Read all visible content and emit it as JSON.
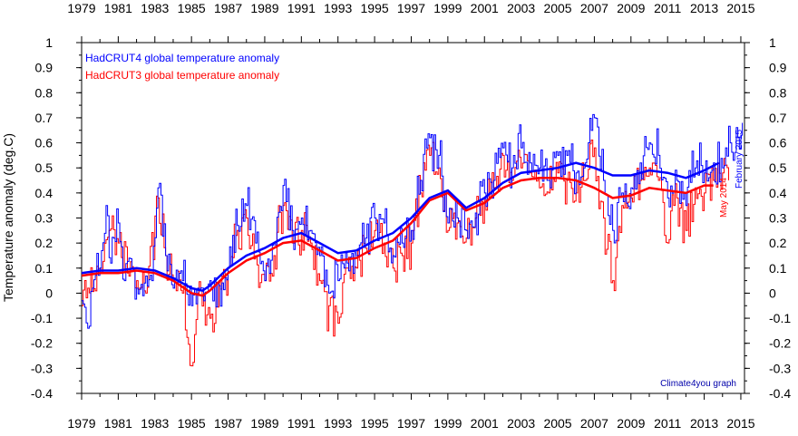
{
  "chart_data": {
    "type": "line",
    "ylabel": "Temperature anomaly (deg.C)",
    "xlim": [
      1979,
      2015.2
    ],
    "ylim": [
      -0.4,
      1.0
    ],
    "x_ticks": [
      1979,
      1981,
      1983,
      1985,
      1987,
      1989,
      1991,
      1993,
      1995,
      1997,
      1999,
      2001,
      2003,
      2005,
      2007,
      2009,
      2011,
      2013,
      2015
    ],
    "y_ticks": [
      -0.4,
      -0.3,
      -0.2,
      -0.1,
      0,
      0.1,
      0.2,
      0.3,
      0.4,
      0.5,
      0.6,
      0.7,
      0.8,
      0.9,
      1
    ],
    "x_tick_labels": [
      "1979",
      "1981",
      "1983",
      "1985",
      "1987",
      "1989",
      "1991",
      "1993",
      "1995",
      "1997",
      "1999",
      "2001",
      "2003",
      "2005",
      "2007",
      "2009",
      "2011",
      "2013",
      "2015"
    ],
    "y_tick_labels": [
      "-0.4",
      "-0.3",
      "-0.2",
      "-0.1",
      "0",
      "0.1",
      "0.2",
      "0.3",
      "0.4",
      "0.5",
      "0.6",
      "0.7",
      "0.8",
      "0.9",
      "1"
    ],
    "legend": {
      "placement": "top-left"
    },
    "grid": false,
    "series": [
      {
        "name": "HadCRUT4 global temperature anomaly",
        "color": "#0000ff",
        "end_label": "February 2015",
        "monthly_anchors": [
          [
            1979.0,
            -0.03
          ],
          [
            1979.3,
            -0.14
          ],
          [
            1979.6,
            0.02
          ],
          [
            1980.0,
            0.1
          ],
          [
            1980.3,
            0.35
          ],
          [
            1980.6,
            0.12
          ],
          [
            1981.0,
            0.28
          ],
          [
            1981.3,
            0.05
          ],
          [
            1981.6,
            0.14
          ],
          [
            1982.0,
            0.02
          ],
          [
            1982.3,
            -0.01
          ],
          [
            1982.8,
            0.05
          ],
          [
            1983.2,
            0.42
          ],
          [
            1983.6,
            0.15
          ],
          [
            1984.0,
            0.02
          ],
          [
            1984.5,
            0.05
          ],
          [
            1985.0,
            -0.05
          ],
          [
            1985.3,
            0.02
          ],
          [
            1985.6,
            0.02
          ],
          [
            1986.0,
            0.05
          ],
          [
            1986.5,
            0.03
          ],
          [
            1987.0,
            0.1
          ],
          [
            1987.5,
            0.27
          ],
          [
            1988.0,
            0.35
          ],
          [
            1988.5,
            0.2
          ],
          [
            1989.0,
            0.05
          ],
          [
            1989.5,
            0.2
          ],
          [
            1990.0,
            0.43
          ],
          [
            1990.5,
            0.25
          ],
          [
            1991.0,
            0.3
          ],
          [
            1991.5,
            0.25
          ],
          [
            1992.0,
            0.15
          ],
          [
            1992.5,
            0.0
          ],
          [
            1993.0,
            0.05
          ],
          [
            1993.5,
            0.12
          ],
          [
            1994.0,
            0.15
          ],
          [
            1994.5,
            0.22
          ],
          [
            1995.0,
            0.3
          ],
          [
            1995.5,
            0.28
          ],
          [
            1996.0,
            0.15
          ],
          [
            1996.5,
            0.2
          ],
          [
            1997.0,
            0.25
          ],
          [
            1997.5,
            0.45
          ],
          [
            1998.0,
            0.62
          ],
          [
            1998.5,
            0.55
          ],
          [
            1999.0,
            0.28
          ],
          [
            1999.5,
            0.3
          ],
          [
            2000.0,
            0.25
          ],
          [
            2000.5,
            0.32
          ],
          [
            2001.0,
            0.4
          ],
          [
            2001.5,
            0.45
          ],
          [
            2002.0,
            0.58
          ],
          [
            2002.5,
            0.5
          ],
          [
            2003.0,
            0.58
          ],
          [
            2003.5,
            0.52
          ],
          [
            2004.0,
            0.5
          ],
          [
            2004.5,
            0.45
          ],
          [
            2005.0,
            0.55
          ],
          [
            2005.5,
            0.55
          ],
          [
            2006.0,
            0.48
          ],
          [
            2006.5,
            0.52
          ],
          [
            2007.0,
            0.7
          ],
          [
            2007.5,
            0.45
          ],
          [
            2008.0,
            0.25
          ],
          [
            2008.5,
            0.4
          ],
          [
            2009.0,
            0.42
          ],
          [
            2009.5,
            0.52
          ],
          [
            2010.0,
            0.6
          ],
          [
            2010.5,
            0.55
          ],
          [
            2011.0,
            0.38
          ],
          [
            2011.5,
            0.45
          ],
          [
            2012.0,
            0.35
          ],
          [
            2012.5,
            0.5
          ],
          [
            2013.0,
            0.48
          ],
          [
            2013.5,
            0.52
          ],
          [
            2014.0,
            0.5
          ],
          [
            2014.4,
            0.6
          ],
          [
            2014.8,
            0.62
          ],
          [
            2015.1,
            0.68
          ]
        ],
        "smoothed": [
          [
            1979.0,
            0.08
          ],
          [
            1980.0,
            0.09
          ],
          [
            1981.0,
            0.09
          ],
          [
            1982.0,
            0.1
          ],
          [
            1983.0,
            0.09
          ],
          [
            1984.0,
            0.06
          ],
          [
            1985.0,
            0.02
          ],
          [
            1985.6,
            0.01
          ],
          [
            1986.0,
            0.03
          ],
          [
            1987.0,
            0.1
          ],
          [
            1988.0,
            0.15
          ],
          [
            1989.0,
            0.18
          ],
          [
            1990.0,
            0.22
          ],
          [
            1991.0,
            0.24
          ],
          [
            1992.0,
            0.2
          ],
          [
            1993.0,
            0.16
          ],
          [
            1994.0,
            0.17
          ],
          [
            1995.0,
            0.21
          ],
          [
            1996.0,
            0.24
          ],
          [
            1997.0,
            0.3
          ],
          [
            1998.0,
            0.38
          ],
          [
            1999.0,
            0.41
          ],
          [
            2000.0,
            0.34
          ],
          [
            2001.0,
            0.38
          ],
          [
            2002.0,
            0.44
          ],
          [
            2003.0,
            0.48
          ],
          [
            2004.0,
            0.49
          ],
          [
            2005.0,
            0.5
          ],
          [
            2006.0,
            0.52
          ],
          [
            2007.0,
            0.5
          ],
          [
            2008.0,
            0.47
          ],
          [
            2009.0,
            0.47
          ],
          [
            2010.0,
            0.49
          ],
          [
            2011.0,
            0.48
          ],
          [
            2012.0,
            0.46
          ],
          [
            2013.0,
            0.49
          ],
          [
            2013.8,
            0.52
          ]
        ]
      },
      {
        "name": "HadCRUT3 global temperature anomaly",
        "color": "#ff0000",
        "end_label": "May 2014",
        "monthly_anchors": [
          [
            1979.0,
            -0.05
          ],
          [
            1979.3,
            0.02
          ],
          [
            1980.0,
            0.1
          ],
          [
            1980.5,
            0.25
          ],
          [
            1981.0,
            0.2
          ],
          [
            1981.5,
            0.08
          ],
          [
            1982.0,
            0.05
          ],
          [
            1982.5,
            0.0
          ],
          [
            1983.2,
            0.38
          ],
          [
            1983.6,
            0.15
          ],
          [
            1984.0,
            0.05
          ],
          [
            1984.5,
            0.0
          ],
          [
            1985.0,
            -0.29
          ],
          [
            1985.3,
            0.0
          ],
          [
            1986.0,
            -0.1
          ],
          [
            1986.5,
            0.05
          ],
          [
            1987.0,
            0.1
          ],
          [
            1987.5,
            0.25
          ],
          [
            1988.0,
            0.3
          ],
          [
            1988.5,
            0.15
          ],
          [
            1989.0,
            0.05
          ],
          [
            1989.5,
            0.15
          ],
          [
            1990.0,
            0.35
          ],
          [
            1990.5,
            0.2
          ],
          [
            1991.0,
            0.25
          ],
          [
            1991.5,
            0.2
          ],
          [
            1992.0,
            0.05
          ],
          [
            1992.5,
            -0.05
          ],
          [
            1993.0,
            -0.12
          ],
          [
            1993.5,
            0.1
          ],
          [
            1994.0,
            0.1
          ],
          [
            1994.5,
            0.18
          ],
          [
            1995.0,
            0.25
          ],
          [
            1995.5,
            0.2
          ],
          [
            1996.0,
            0.1
          ],
          [
            1996.5,
            0.15
          ],
          [
            1997.0,
            0.2
          ],
          [
            1997.5,
            0.4
          ],
          [
            1998.0,
            0.55
          ],
          [
            1998.5,
            0.5
          ],
          [
            1999.0,
            0.25
          ],
          [
            1999.5,
            0.28
          ],
          [
            2000.0,
            0.22
          ],
          [
            2000.5,
            0.3
          ],
          [
            2001.0,
            0.38
          ],
          [
            2001.5,
            0.42
          ],
          [
            2002.0,
            0.55
          ],
          [
            2002.5,
            0.45
          ],
          [
            2003.0,
            0.5
          ],
          [
            2003.5,
            0.48
          ],
          [
            2004.0,
            0.42
          ],
          [
            2004.5,
            0.4
          ],
          [
            2005.0,
            0.48
          ],
          [
            2005.5,
            0.45
          ],
          [
            2006.0,
            0.4
          ],
          [
            2006.5,
            0.45
          ],
          [
            2007.0,
            0.58
          ],
          [
            2007.5,
            0.3
          ],
          [
            2008.0,
            0.05
          ],
          [
            2008.5,
            0.35
          ],
          [
            2009.0,
            0.38
          ],
          [
            2009.5,
            0.45
          ],
          [
            2010.0,
            0.5
          ],
          [
            2010.5,
            0.45
          ],
          [
            2011.0,
            0.2
          ],
          [
            2011.5,
            0.38
          ],
          [
            2012.0,
            0.25
          ],
          [
            2012.5,
            0.42
          ],
          [
            2013.0,
            0.4
          ],
          [
            2013.5,
            0.45
          ],
          [
            2014.0,
            0.48
          ],
          [
            2014.4,
            0.45
          ]
        ],
        "smoothed": [
          [
            1979.0,
            0.07
          ],
          [
            1980.0,
            0.08
          ],
          [
            1981.0,
            0.08
          ],
          [
            1982.0,
            0.09
          ],
          [
            1983.0,
            0.08
          ],
          [
            1984.0,
            0.05
          ],
          [
            1985.0,
            0.0
          ],
          [
            1985.6,
            -0.01
          ],
          [
            1986.0,
            0.01
          ],
          [
            1987.0,
            0.08
          ],
          [
            1988.0,
            0.13
          ],
          [
            1989.0,
            0.16
          ],
          [
            1990.0,
            0.2
          ],
          [
            1991.0,
            0.21
          ],
          [
            1992.0,
            0.17
          ],
          [
            1993.0,
            0.13
          ],
          [
            1994.0,
            0.14
          ],
          [
            1995.0,
            0.18
          ],
          [
            1996.0,
            0.21
          ],
          [
            1997.0,
            0.28
          ],
          [
            1998.0,
            0.37
          ],
          [
            1999.0,
            0.4
          ],
          [
            2000.0,
            0.33
          ],
          [
            2001.0,
            0.36
          ],
          [
            2002.0,
            0.42
          ],
          [
            2003.0,
            0.45
          ],
          [
            2004.0,
            0.46
          ],
          [
            2005.0,
            0.46
          ],
          [
            2006.0,
            0.45
          ],
          [
            2007.0,
            0.42
          ],
          [
            2008.0,
            0.38
          ],
          [
            2009.0,
            0.39
          ],
          [
            2010.0,
            0.42
          ],
          [
            2011.0,
            0.41
          ],
          [
            2012.0,
            0.4
          ],
          [
            2013.0,
            0.43
          ],
          [
            2013.5,
            0.43
          ]
        ]
      }
    ],
    "annotations": [
      "Climate4you graph"
    ]
  }
}
